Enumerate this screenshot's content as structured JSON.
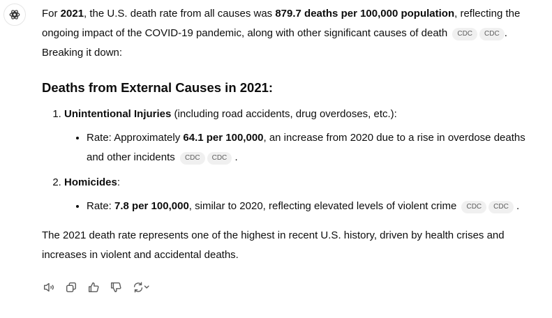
{
  "intro": {
    "t1": "For ",
    "b1": "2021",
    "t2": ", the U.S. death rate from all causes was ",
    "b2": "879.7 deaths per 100,000 population",
    "t3": ", reflecting the ongoing impact of the COVID-19 pandemic, along with other significant causes of death",
    "cites": [
      "CDC",
      "CDC"
    ],
    "t4": ". Breaking it down:"
  },
  "heading": "Deaths from External Causes in 2021:",
  "items": [
    {
      "title": "Unintentional Injuries",
      "title_rest": " (including road accidents, drug overdoses, etc.):",
      "bullet": {
        "t1": "Rate: Approximately ",
        "b1": "64.1 per 100,000",
        "t2": ", an increase from 2020 due to a rise in overdose deaths and other incidents",
        "cites": [
          "CDC",
          "CDC"
        ],
        "t3": "."
      }
    },
    {
      "title": "Homicides",
      "title_rest": ":",
      "bullet": {
        "t1": "Rate: ",
        "b1": "7.8 per 100,000",
        "t2": ", similar to 2020, reflecting elevated levels of violent crime",
        "cites": [
          "CDC",
          "CDC"
        ],
        "t3": "."
      }
    }
  ],
  "conclusion": "The 2021 death rate represents one of the highest in recent U.S. history, driven by health crises and increases in violent and accidental deaths.",
  "actions": [
    "read-aloud-icon",
    "copy-icon",
    "thumbs-up-icon",
    "thumbs-down-icon",
    "regenerate-icon"
  ]
}
